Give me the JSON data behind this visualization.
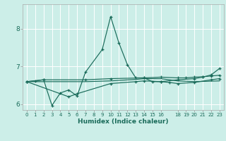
{
  "xlabel": "Humidex (Indice chaleur)",
  "bg_color": "#cceee8",
  "grid_color": "#ffffff",
  "line_color": "#1a6b5a",
  "xlim": [
    -0.5,
    23.5
  ],
  "ylim": [
    5.85,
    8.65
  ],
  "yticks": [
    6,
    7,
    8
  ],
  "xticks": [
    0,
    1,
    2,
    3,
    4,
    5,
    6,
    7,
    8,
    9,
    10,
    11,
    12,
    13,
    14,
    15,
    16,
    18,
    19,
    20,
    21,
    22,
    23
  ],
  "s1": [
    [
      0,
      6.6
    ],
    [
      2,
      6.65
    ],
    [
      3,
      5.97
    ],
    [
      4,
      6.3
    ],
    [
      5,
      6.38
    ],
    [
      6,
      6.22
    ],
    [
      7,
      6.85
    ],
    [
      9,
      7.45
    ],
    [
      10,
      8.32
    ],
    [
      11,
      7.62
    ],
    [
      12,
      7.05
    ],
    [
      13,
      6.7
    ],
    [
      14,
      6.7
    ],
    [
      15,
      6.6
    ],
    [
      16,
      6.6
    ],
    [
      18,
      6.65
    ],
    [
      20,
      6.68
    ],
    [
      21,
      6.72
    ],
    [
      22,
      6.78
    ],
    [
      23,
      6.95
    ]
  ],
  "s2": [
    [
      0,
      6.6
    ],
    [
      1,
      6.62
    ],
    [
      2,
      6.65
    ],
    [
      7,
      6.65
    ],
    [
      10,
      6.68
    ],
    [
      14,
      6.7
    ],
    [
      16,
      6.72
    ],
    [
      18,
      6.7
    ],
    [
      19,
      6.7
    ],
    [
      20,
      6.72
    ],
    [
      21,
      6.73
    ],
    [
      22,
      6.75
    ],
    [
      23,
      6.77
    ]
  ],
  "s3": [
    [
      0,
      6.6
    ],
    [
      3,
      6.6
    ],
    [
      7,
      6.6
    ],
    [
      10,
      6.62
    ],
    [
      13,
      6.66
    ],
    [
      14,
      6.68
    ],
    [
      16,
      6.68
    ],
    [
      18,
      6.62
    ],
    [
      20,
      6.6
    ],
    [
      23,
      6.62
    ]
  ],
  "s4": [
    [
      0,
      6.6
    ],
    [
      5,
      6.2
    ],
    [
      6,
      6.28
    ],
    [
      10,
      6.55
    ],
    [
      13,
      6.6
    ],
    [
      14,
      6.62
    ],
    [
      16,
      6.6
    ],
    [
      17,
      6.58
    ],
    [
      18,
      6.55
    ],
    [
      20,
      6.58
    ],
    [
      22,
      6.65
    ],
    [
      23,
      6.68
    ]
  ]
}
